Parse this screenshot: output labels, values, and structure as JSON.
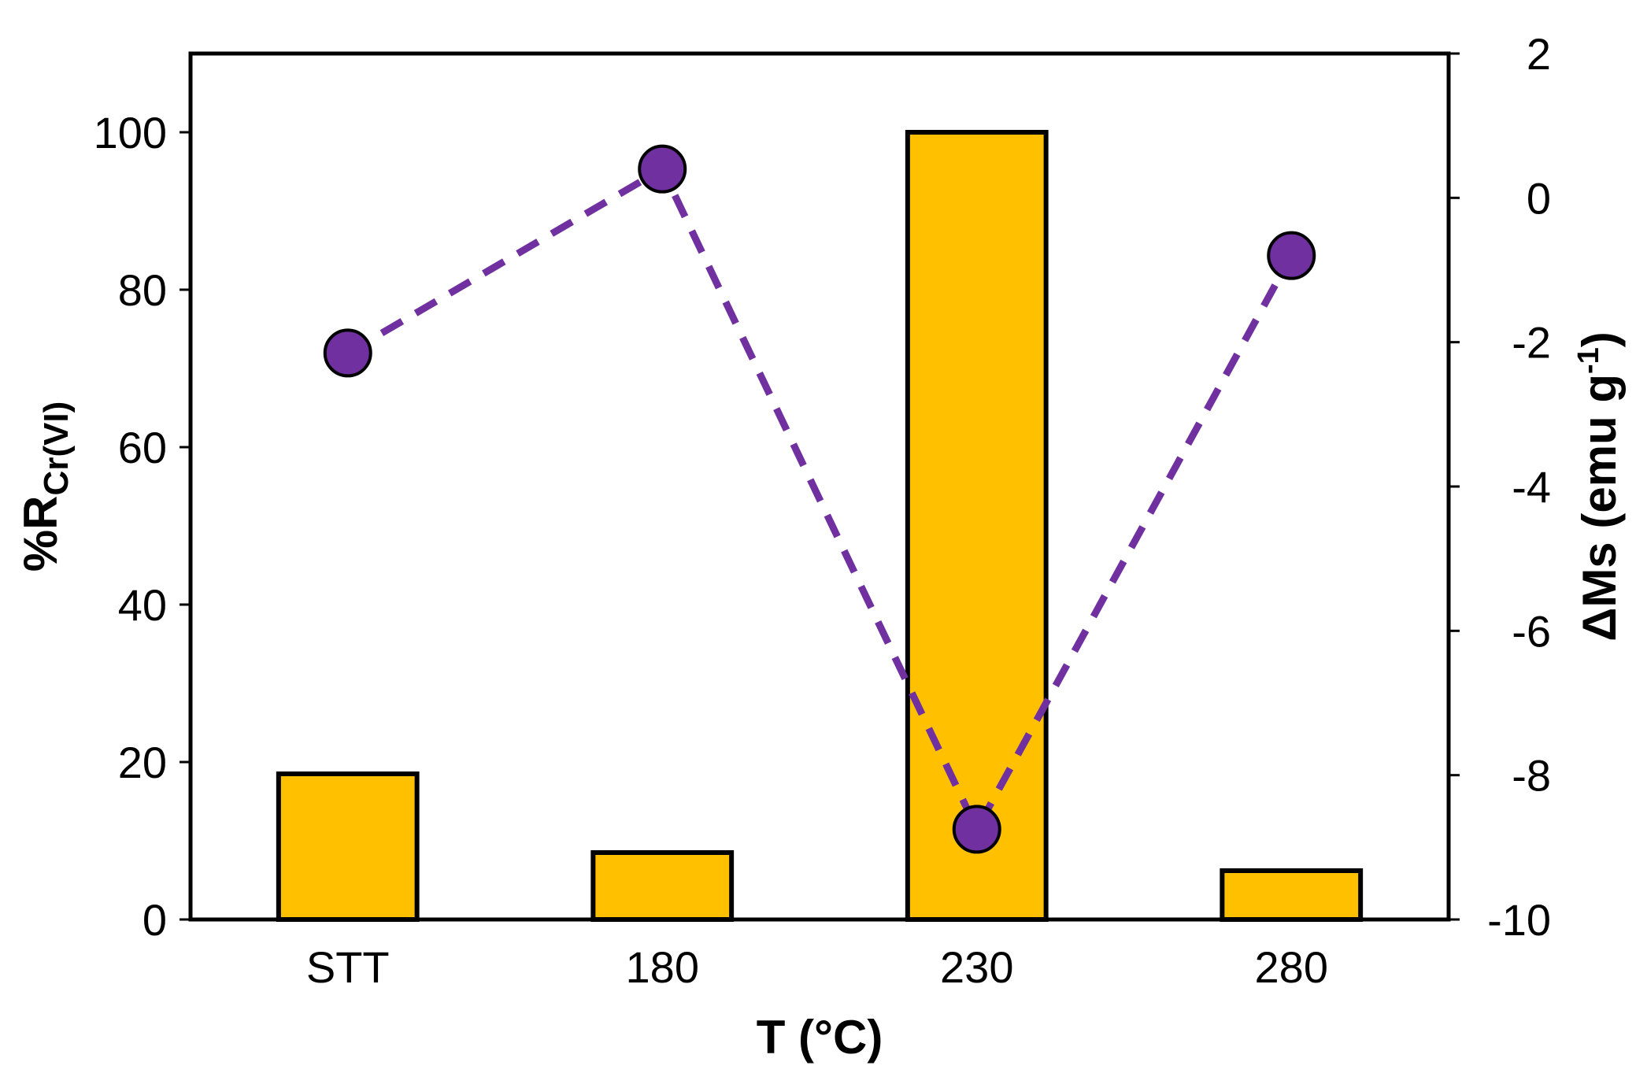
{
  "chart_data": {
    "type": "bar",
    "categories": [
      "STT",
      "180",
      "230",
      "280"
    ],
    "series": [
      {
        "type": "bar",
        "axis": "left",
        "values": [
          18.5,
          8.5,
          100,
          6.2
        ],
        "color": "#FFC000",
        "stroke": "#000000"
      },
      {
        "type": "line",
        "axis": "right",
        "values": [
          -2.15,
          0.4,
          -8.75,
          -0.8
        ],
        "color": "#7030A0",
        "line_style": "dashed",
        "marker": "circle"
      }
    ],
    "xlabel": "T (°C)",
    "ylabel_left": {
      "main": "%R",
      "sub": "Cr(VI)"
    },
    "ylabel_right": {
      "main": "ΔMs (emu g",
      "sup": "-1",
      "end": ")"
    },
    "ylim_left": [
      0,
      110
    ],
    "yticks_left": [
      0,
      20,
      40,
      60,
      80,
      100
    ],
    "ylim_right": [
      -10,
      2
    ],
    "yticks_right": [
      -10,
      -8,
      -6,
      -4,
      -2,
      0,
      2
    ],
    "grid": false,
    "legend": "none"
  }
}
